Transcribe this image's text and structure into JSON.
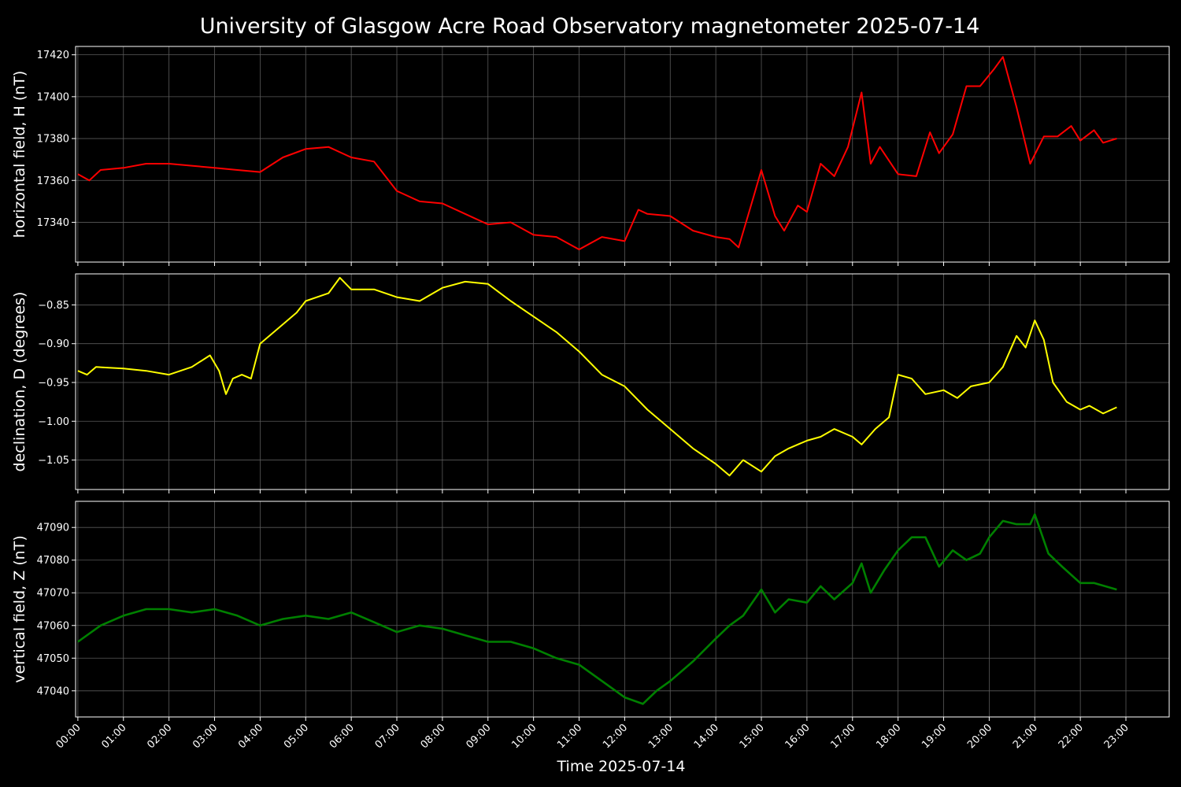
{
  "title": "University of Glasgow Acre Road Observatory magnetometer 2025-07-14",
  "xlabel": "Time 2025-07-14",
  "x_ticks": [
    "00:00",
    "01:00",
    "02:00",
    "03:00",
    "04:00",
    "05:00",
    "06:00",
    "07:00",
    "08:00",
    "09:00",
    "10:00",
    "11:00",
    "12:00",
    "13:00",
    "14:00",
    "15:00",
    "16:00",
    "17:00",
    "18:00",
    "19:00",
    "20:00",
    "21:00",
    "22:00",
    "23:00"
  ],
  "chart_data": [
    {
      "type": "line",
      "ylabel": "horizontal field, H (nT)",
      "color": "#ff0000",
      "ylim": [
        17321,
        17424
      ],
      "yticks": [
        17340,
        17360,
        17380,
        17400,
        17420
      ],
      "ytick_labels": [
        "17340",
        "17360",
        "17380",
        "17400",
        "17420"
      ],
      "x_unit": "hours",
      "x": [
        0,
        0.25,
        0.5,
        1,
        1.5,
        2,
        2.5,
        3,
        3.5,
        4,
        4.5,
        5,
        5.5,
        6,
        6.5,
        7,
        7.5,
        8,
        8.5,
        9,
        9.5,
        10,
        10.5,
        11,
        11.5,
        12,
        12.3,
        12.5,
        13,
        13.5,
        14,
        14.3,
        14.5,
        14.8,
        15,
        15.3,
        15.5,
        15.8,
        16,
        16.3,
        16.6,
        16.9,
        17.2,
        17.4,
        17.6,
        18,
        18.4,
        18.7,
        18.9,
        19.2,
        19.5,
        19.8,
        20.1,
        20.3,
        20.6,
        20.9,
        21.2,
        21.5,
        21.8,
        22,
        22.3,
        22.5,
        22.8
      ],
      "y": [
        17363,
        17360,
        17365,
        17366,
        17368,
        17368,
        17367,
        17366,
        17365,
        17364,
        17371,
        17375,
        17376,
        17371,
        17369,
        17355,
        17350,
        17349,
        17344,
        17339,
        17340,
        17334,
        17333,
        17327,
        17333,
        17331,
        17346,
        17344,
        17343,
        17336,
        17333,
        17332,
        17328,
        17350,
        17365,
        17343,
        17336,
        17348,
        17345,
        17368,
        17362,
        17376,
        17402,
        17368,
        17376,
        17363,
        17362,
        17383,
        17373,
        17382,
        17405,
        17405,
        17413,
        17419,
        17395,
        17368,
        17381,
        17381,
        17386,
        17379,
        17384,
        17378,
        17380
      ]
    },
    {
      "type": "line",
      "ylabel": "declination, D (degrees)",
      "color": "#ffff00",
      "ylim": [
        -1.088,
        -0.81
      ],
      "yticks": [
        -1.05,
        -1.0,
        -0.95,
        -0.9,
        -0.85
      ],
      "ytick_labels": [
        "−1.05",
        "−1.00",
        "−0.95",
        "−0.90",
        "−0.85"
      ],
      "x_unit": "hours",
      "x": [
        0,
        0.2,
        0.4,
        1,
        1.5,
        2,
        2.5,
        2.9,
        3.1,
        3.25,
        3.4,
        3.6,
        3.8,
        4,
        4.5,
        4.8,
        5,
        5.5,
        5.75,
        6,
        6.5,
        7,
        7.5,
        8,
        8.5,
        9,
        9.5,
        10,
        10.5,
        11,
        11.5,
        12,
        12.5,
        13,
        13.5,
        14,
        14.3,
        14.6,
        15,
        15.3,
        15.6,
        16,
        16.3,
        16.6,
        17,
        17.2,
        17.5,
        17.8,
        18,
        18.3,
        18.6,
        19,
        19.3,
        19.6,
        20,
        20.3,
        20.6,
        20.8,
        21,
        21.2,
        21.4,
        21.7,
        22,
        22.2,
        22.5,
        22.8
      ],
      "y": [
        -0.935,
        -0.94,
        -0.93,
        -0.932,
        -0.935,
        -0.94,
        -0.93,
        -0.915,
        -0.935,
        -0.965,
        -0.945,
        -0.94,
        -0.945,
        -0.9,
        -0.875,
        -0.86,
        -0.845,
        -0.835,
        -0.815,
        -0.83,
        -0.83,
        -0.84,
        -0.845,
        -0.828,
        -0.82,
        -0.823,
        -0.845,
        -0.865,
        -0.885,
        -0.91,
        -0.94,
        -0.955,
        -0.985,
        -1.01,
        -1.035,
        -1.055,
        -1.07,
        -1.05,
        -1.065,
        -1.045,
        -1.035,
        -1.025,
        -1.02,
        -1.01,
        -1.02,
        -1.03,
        -1.01,
        -0.995,
        -0.94,
        -0.945,
        -0.965,
        -0.96,
        -0.97,
        -0.955,
        -0.95,
        -0.93,
        -0.89,
        -0.905,
        -0.87,
        -0.895,
        -0.95,
        -0.975,
        -0.985,
        -0.98,
        -0.99,
        -0.982
      ]
    },
    {
      "type": "line",
      "ylabel": "vertical field, Z (nT)",
      "color": "#008000",
      "ylim": [
        47032,
        47098
      ],
      "yticks": [
        47040,
        47050,
        47060,
        47070,
        47080,
        47090
      ],
      "ytick_labels": [
        "47040",
        "47050",
        "47060",
        "47070",
        "47080",
        "47090"
      ],
      "x_unit": "hours",
      "x": [
        0,
        0.5,
        1,
        1.5,
        2,
        2.5,
        3,
        3.5,
        4,
        4.5,
        5,
        5.5,
        6,
        6.5,
        7,
        7.5,
        8,
        8.5,
        9,
        9.5,
        10,
        10.5,
        11,
        11.5,
        12,
        12.4,
        12.7,
        13,
        13.5,
        14,
        14.3,
        14.6,
        15,
        15.3,
        15.6,
        16,
        16.3,
        16.6,
        17,
        17.2,
        17.4,
        17.7,
        18,
        18.3,
        18.6,
        18.9,
        19.2,
        19.5,
        19.8,
        20,
        20.3,
        20.6,
        20.9,
        21,
        21.3,
        21.6,
        22,
        22.3,
        22.8
      ],
      "y": [
        47055,
        47060,
        47063,
        47065,
        47065,
        47064,
        47065,
        47063,
        47060,
        47062,
        47063,
        47062,
        47064,
        47061,
        47058,
        47060,
        47059,
        47057,
        47055,
        47055,
        47053,
        47050,
        47048,
        47043,
        47038,
        47036,
        47040,
        47043,
        47049,
        47056,
        47060,
        47063,
        47071,
        47064,
        47068,
        47067,
        47072,
        47068,
        47073,
        47079,
        47070,
        47077,
        47083,
        47087,
        47087,
        47078,
        47083,
        47080,
        47082,
        47087,
        47092,
        47091,
        47091,
        47094,
        47082,
        47078,
        47073,
        47073,
        47071
      ]
    }
  ]
}
